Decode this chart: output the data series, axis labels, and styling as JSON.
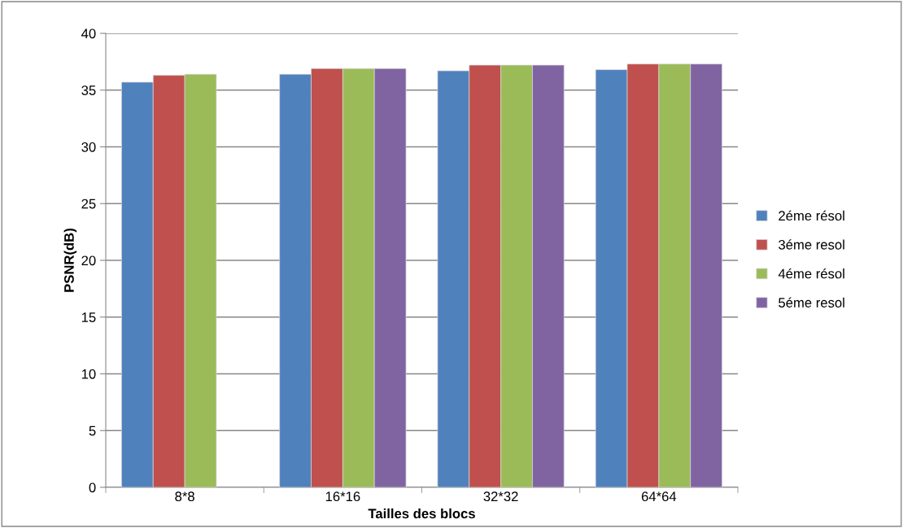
{
  "chart_data": {
    "type": "bar",
    "xlabel": "Tailles des blocs",
    "ylabel": "PSNR(dB)",
    "categories": [
      "8*8",
      "16*16",
      "32*32",
      "64*64"
    ],
    "series": [
      {
        "name": "2éme résol",
        "color": "#4f81bd",
        "values": [
          35.7,
          36.4,
          36.7,
          36.8
        ]
      },
      {
        "name": "3éme resol",
        "color": "#c0504d",
        "values": [
          36.3,
          36.9,
          37.2,
          37.3
        ]
      },
      {
        "name": "4éme résol",
        "color": "#9bbb59",
        "values": [
          36.4,
          36.9,
          37.2,
          37.3
        ]
      },
      {
        "name": "5éme resol",
        "color": "#8064a2",
        "values": [
          null,
          36.9,
          37.2,
          37.3
        ]
      }
    ],
    "ylim": [
      0,
      40
    ],
    "yticks": [
      0,
      5,
      10,
      15,
      20,
      25,
      30,
      35,
      40
    ],
    "grid": "y",
    "legend": "right"
  }
}
